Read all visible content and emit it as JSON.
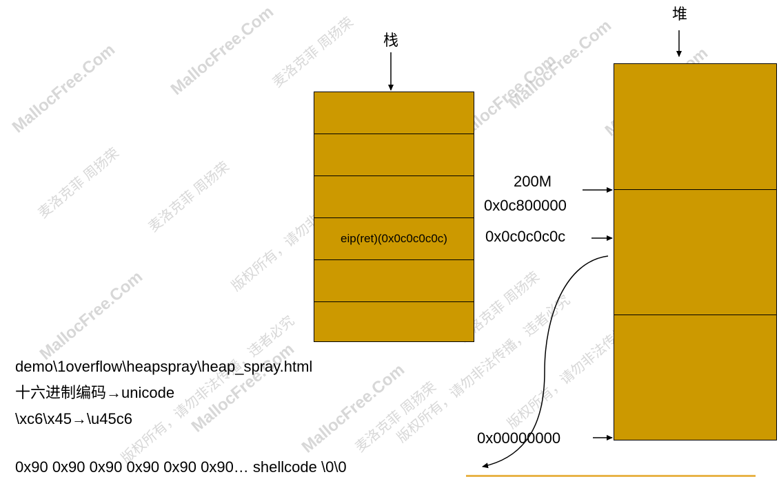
{
  "stack": {
    "title": "栈",
    "cells": [
      "",
      "",
      "",
      "eip(ret)(0x0c0c0c0c)",
      "",
      ""
    ]
  },
  "heap": {
    "title": "堆",
    "cells": [
      "",
      "",
      ""
    ]
  },
  "addresses": {
    "size": "200M",
    "addr_top": "0x0c800000",
    "addr_mid": "0x0c0c0c0c",
    "addr_zero": "0x00000000"
  },
  "notes": {
    "line1": "demo\\1overflow\\heapspray\\heap_spray.html",
    "line2": "十六进制编码→unicode",
    "line3": "\\xc6\\x45→\\u45c6",
    "payload": "0x90 0x90 0x90 0x90 0x90 0x90… shellcode \\0\\0"
  },
  "watermark": {
    "site": "MallocFree.Com",
    "author": "麦洛克菲 周扬荣",
    "copyright": "版权所有，请勿非法传播，违者必究"
  },
  "colors": {
    "fill": "#cc9900",
    "accent_line": "#e8b347"
  }
}
